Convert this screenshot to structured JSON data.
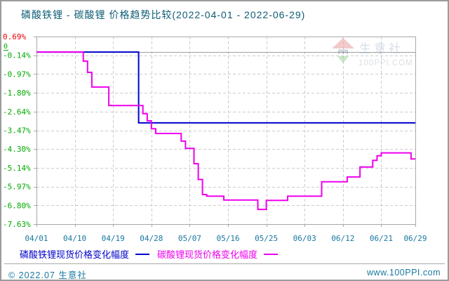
{
  "header": {
    "title": "磷酸铁锂 - 碳酸锂 价格趋势比较(2022-04-01 - 2022-06-29)"
  },
  "watermark": {
    "logo_text": "PPI",
    "brand": "生意社",
    "site": "100PPI.COM"
  },
  "footer": {
    "copyright": "© 2022.07 生意社",
    "site": "www.100PPI.com"
  },
  "colors": {
    "title_text": "#0c5c74",
    "date_text": "#1878a0",
    "positive_label": "#e80000",
    "negative_label": "#00aa00",
    "grid": "#cccccc",
    "axis": "#a8a8a8",
    "zero_line": "#a0a0a0",
    "series1": "#0000cc",
    "series2": "#ee00ee"
  },
  "chart_data": {
    "type": "line",
    "title": "磷酸铁锂 - 碳酸锂 价格趋势比较(2022-04-01 - 2022-06-29)",
    "xlabel": "",
    "ylabel": "",
    "ylim": [
      -7.63,
      0.69
    ],
    "grid": true,
    "legend_position": "bottom",
    "zero_label": "0",
    "x_tick_labels": [
      "04/01",
      "04/10",
      "04/19",
      "04/28",
      "05/07",
      "05/16",
      "05/25",
      "06/03",
      "06/12",
      "06/21",
      "06/29"
    ],
    "y_ticks": [
      {
        "label": "0.69%",
        "value": 0.69
      },
      {
        "label": "-0.14%",
        "value": -0.14
      },
      {
        "label": "-0.97%",
        "value": -0.97
      },
      {
        "label": "-1.80%",
        "value": -1.8
      },
      {
        "label": "-2.64%",
        "value": -2.64
      },
      {
        "label": "-3.47%",
        "value": -3.47
      },
      {
        "label": "-4.30%",
        "value": -4.3
      },
      {
        "label": "-5.14%",
        "value": -5.14
      },
      {
        "label": "-5.97%",
        "value": -5.97
      },
      {
        "label": "-6.80%",
        "value": -6.8
      },
      {
        "label": "-7.63%",
        "value": -7.63
      }
    ],
    "series": [
      {
        "name": "磷酸铁锂现货价格变化幅度",
        "color": "#0000cc",
        "type": "step",
        "points": [
          [
            "04/01",
            0
          ],
          [
            "04/24",
            0
          ],
          [
            "04/25",
            -3.14
          ],
          [
            "06/29",
            -3.14
          ]
        ]
      },
      {
        "name": "碳酸锂现货价格变化幅度",
        "color": "#ee00ee",
        "type": "step",
        "points": [
          [
            "04/01",
            0
          ],
          [
            "04/11",
            0
          ],
          [
            "04/12",
            -0.4
          ],
          [
            "04/13",
            -0.9
          ],
          [
            "04/14",
            -1.55
          ],
          [
            "04/17",
            -1.55
          ],
          [
            "04/18",
            -2.37
          ],
          [
            "04/25",
            -2.37
          ],
          [
            "04/26",
            -2.73
          ],
          [
            "04/27",
            -3.05
          ],
          [
            "04/28",
            -3.4
          ],
          [
            "04/29",
            -3.61
          ],
          [
            "05/04",
            -3.61
          ],
          [
            "05/05",
            -3.95
          ],
          [
            "05/06",
            -4.27
          ],
          [
            "05/07",
            -4.27
          ],
          [
            "05/08",
            -4.95
          ],
          [
            "05/09",
            -5.65
          ],
          [
            "05/10",
            -6.32
          ],
          [
            "05/11",
            -6.39
          ],
          [
            "05/14",
            -6.39
          ],
          [
            "05/15",
            -6.56
          ],
          [
            "05/22",
            -6.56
          ],
          [
            "05/23",
            -6.98
          ],
          [
            "05/24",
            -6.98
          ],
          [
            "05/25",
            -6.58
          ],
          [
            "05/29",
            -6.58
          ],
          [
            "05/30",
            -6.39
          ],
          [
            "06/06",
            -6.39
          ],
          [
            "06/07",
            -5.75
          ],
          [
            "06/12",
            -5.75
          ],
          [
            "06/13",
            -5.54
          ],
          [
            "06/15",
            -5.54
          ],
          [
            "06/16",
            -5.1
          ],
          [
            "06/18",
            -5.1
          ],
          [
            "06/19",
            -4.8
          ],
          [
            "06/20",
            -4.6
          ],
          [
            "06/21",
            -4.47
          ],
          [
            "06/27",
            -4.47
          ],
          [
            "06/28",
            -4.74
          ],
          [
            "06/29",
            -4.74
          ]
        ]
      }
    ]
  }
}
